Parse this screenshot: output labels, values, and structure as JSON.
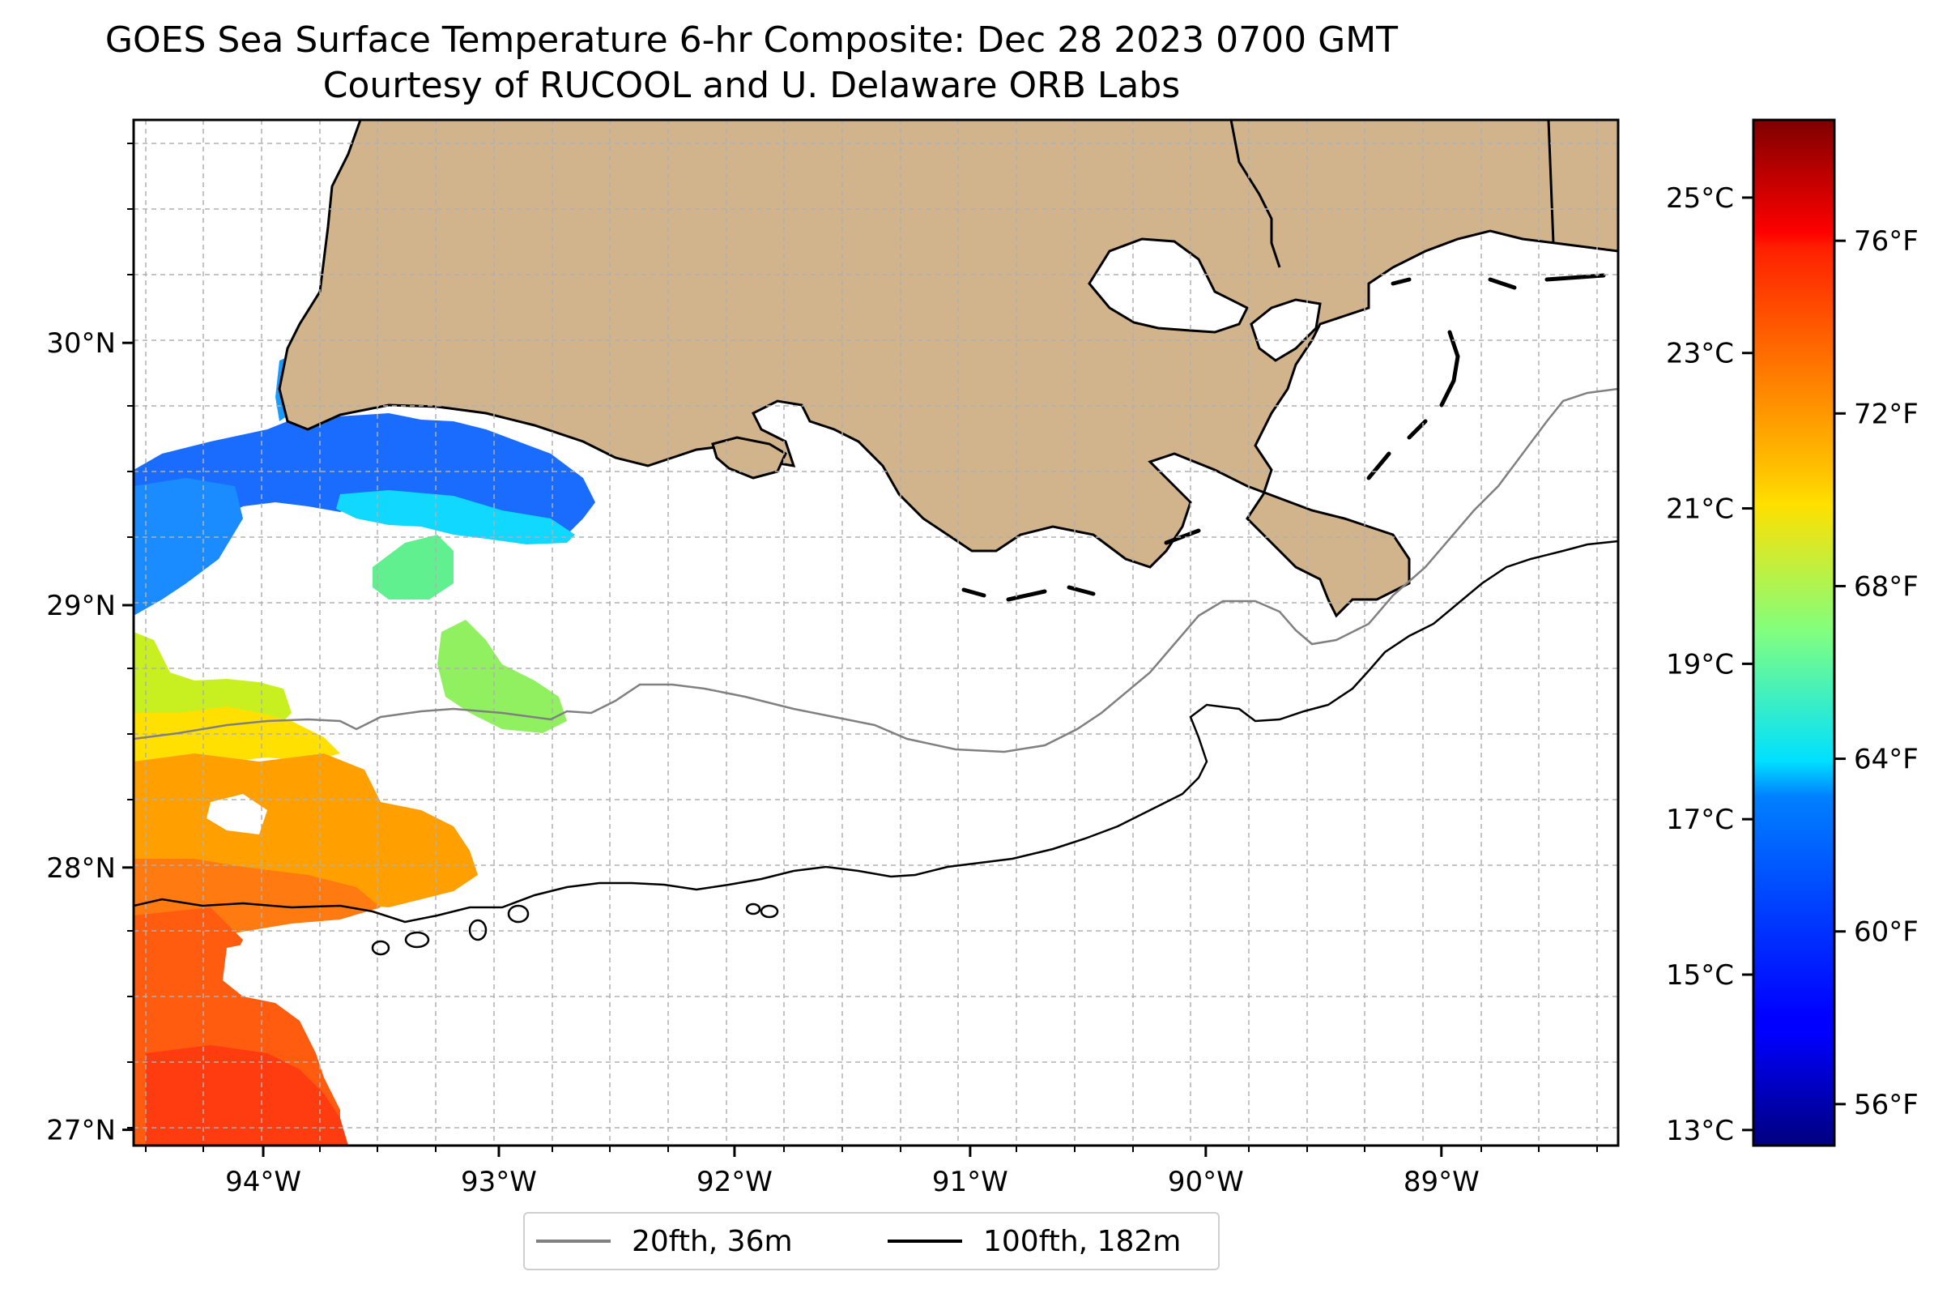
{
  "title": {
    "line1": "GOES Sea Surface Temperature 6-hr Composite: Dec 28 2023 0700 GMT",
    "line2": "Courtesy of RUCOOL and U. Delaware ORB Labs"
  },
  "map": {
    "lon_range": [
      -94.55,
      -88.25
    ],
    "lat_range": [
      26.94,
      30.85
    ],
    "lon_ticks": [
      {
        "value": -94,
        "label": "94°W"
      },
      {
        "value": -93,
        "label": "93°W"
      },
      {
        "value": -92,
        "label": "92°W"
      },
      {
        "value": -91,
        "label": "91°W"
      },
      {
        "value": -90,
        "label": "90°W"
      },
      {
        "value": -89,
        "label": "89°W"
      }
    ],
    "lat_ticks": [
      {
        "value": 27,
        "label": "27°N"
      },
      {
        "value": 28,
        "label": "28°N"
      },
      {
        "value": 29,
        "label": "29°N"
      },
      {
        "value": 30,
        "label": "30°N"
      }
    ],
    "grid": true,
    "land_color": "#d2b48c",
    "water_color": "#ffffff",
    "isobaths": [
      {
        "label": "20fth, 36m",
        "color": "#808080"
      },
      {
        "label": "100fth, 182m",
        "color": "#000000"
      }
    ],
    "legend_placement": "bottom-center, below map"
  },
  "colorbar": {
    "colormap": "jet",
    "celsius_range": [
      12.8,
      26.0
    ],
    "celsius_ticks": [
      {
        "value": 13,
        "label": "13°C"
      },
      {
        "value": 15,
        "label": "15°C"
      },
      {
        "value": 17,
        "label": "17°C"
      },
      {
        "value": 19,
        "label": "19°C"
      },
      {
        "value": 21,
        "label": "21°C"
      },
      {
        "value": 23,
        "label": "23°C"
      },
      {
        "value": 25,
        "label": "25°C"
      }
    ],
    "fahrenheit_ticks": [
      {
        "value": 56,
        "label": "56°F"
      },
      {
        "value": 60,
        "label": "60°F"
      },
      {
        "value": 64,
        "label": "64°F"
      },
      {
        "value": 68,
        "label": "68°F"
      },
      {
        "value": 72,
        "label": "72°F"
      },
      {
        "value": 76,
        "label": "76°F"
      }
    ]
  }
}
